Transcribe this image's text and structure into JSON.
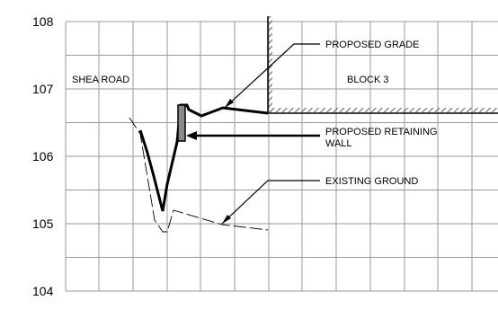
{
  "y_axis": {
    "ticks": [
      "108",
      "107",
      "106",
      "105",
      "104"
    ],
    "range": [
      104,
      108
    ]
  },
  "labels": {
    "shea_road": "SHEA ROAD",
    "block": "BLOCK 3"
  },
  "callouts": {
    "proposed_grade": "PROPOSED GRADE",
    "retaining_wall_line1": "PROPOSED RETAINING",
    "retaining_wall_line2": "WALL",
    "existing_ground": "EXISTING GROUND"
  },
  "colors": {
    "grid": "#9a9a9a",
    "line": "#000000",
    "hatch": "#666666",
    "wall": "#8a8a8a"
  }
}
